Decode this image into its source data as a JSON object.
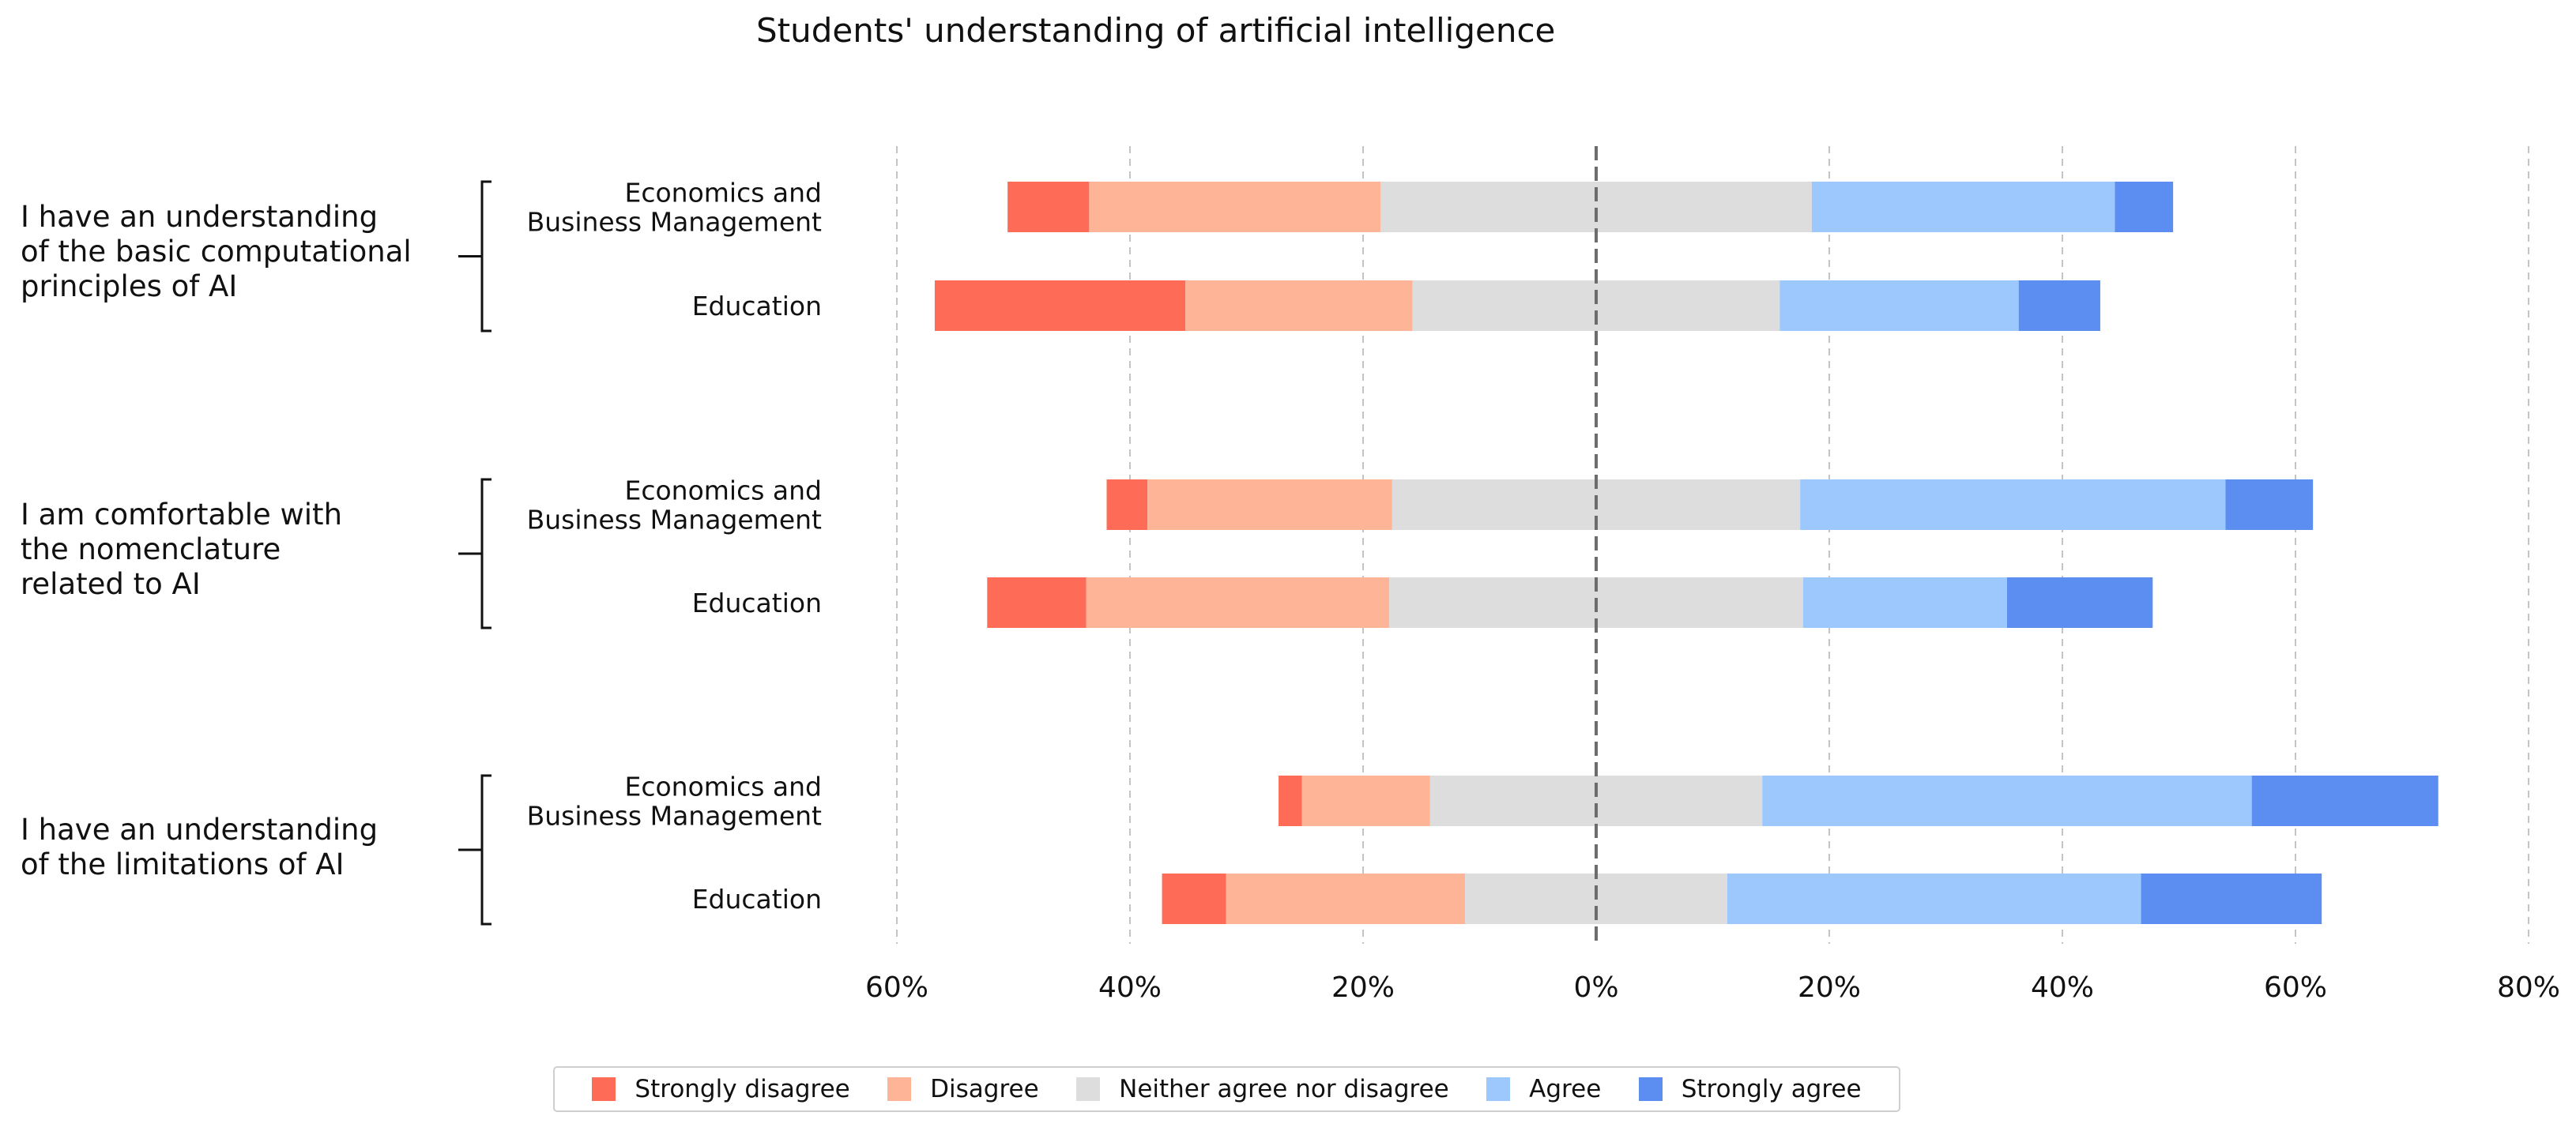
{
  "chart_data": {
    "type": "bar",
    "orientation": "horizontal-diverging",
    "title": "Students' understanding of artificial intelligence",
    "xlim": [
      -60,
      80
    ],
    "xticks": [
      -60,
      -40,
      -20,
      0,
      20,
      40,
      60,
      80
    ],
    "xtick_labels": [
      "60%",
      "40%",
      "20%",
      "0%",
      "20%",
      "40%",
      "60%",
      "80%"
    ],
    "grid": "vertical dashed",
    "legend_position": "bottom-center",
    "categories": [
      "Strongly disagree",
      "Disagree",
      "Neither agree nor disagree",
      "Agree",
      "Strongly agree"
    ],
    "colors": [
      "#fe6b56",
      "#feb597",
      "#dcdddc",
      "#9dc8fd",
      "#5b8ef0"
    ],
    "groups": [
      {
        "question": [
          "I have an understanding",
          "of the basic computational",
          "principles of AI"
        ],
        "rows": [
          {
            "label": [
              "Economics and",
              "Business Management"
            ],
            "values": [
              7,
              25,
              37,
              26,
              5
            ]
          },
          {
            "label": [
              "Education"
            ],
            "values": [
              21.5,
              19.5,
              31.5,
              20.5,
              7
            ]
          }
        ]
      },
      {
        "question": [
          "I am comfortable with",
          "the nomenclature",
          "related to AI"
        ],
        "rows": [
          {
            "label": [
              "Economics and",
              "Business Management"
            ],
            "values": [
              3.5,
              21,
              35,
              36.5,
              7.5
            ]
          },
          {
            "label": [
              "Education"
            ],
            "values": [
              8.5,
              26,
              35.5,
              17.5,
              12.5
            ]
          }
        ]
      },
      {
        "question": [
          "I have an understanding",
          "of the limitations of AI"
        ],
        "rows": [
          {
            "label": [
              "Economics and",
              "Business Management"
            ],
            "values": [
              2,
              11,
              28.5,
              42,
              16
            ]
          },
          {
            "label": [
              "Education"
            ],
            "values": [
              5.5,
              20.5,
              22.5,
              35.5,
              15.5
            ]
          }
        ]
      }
    ]
  }
}
